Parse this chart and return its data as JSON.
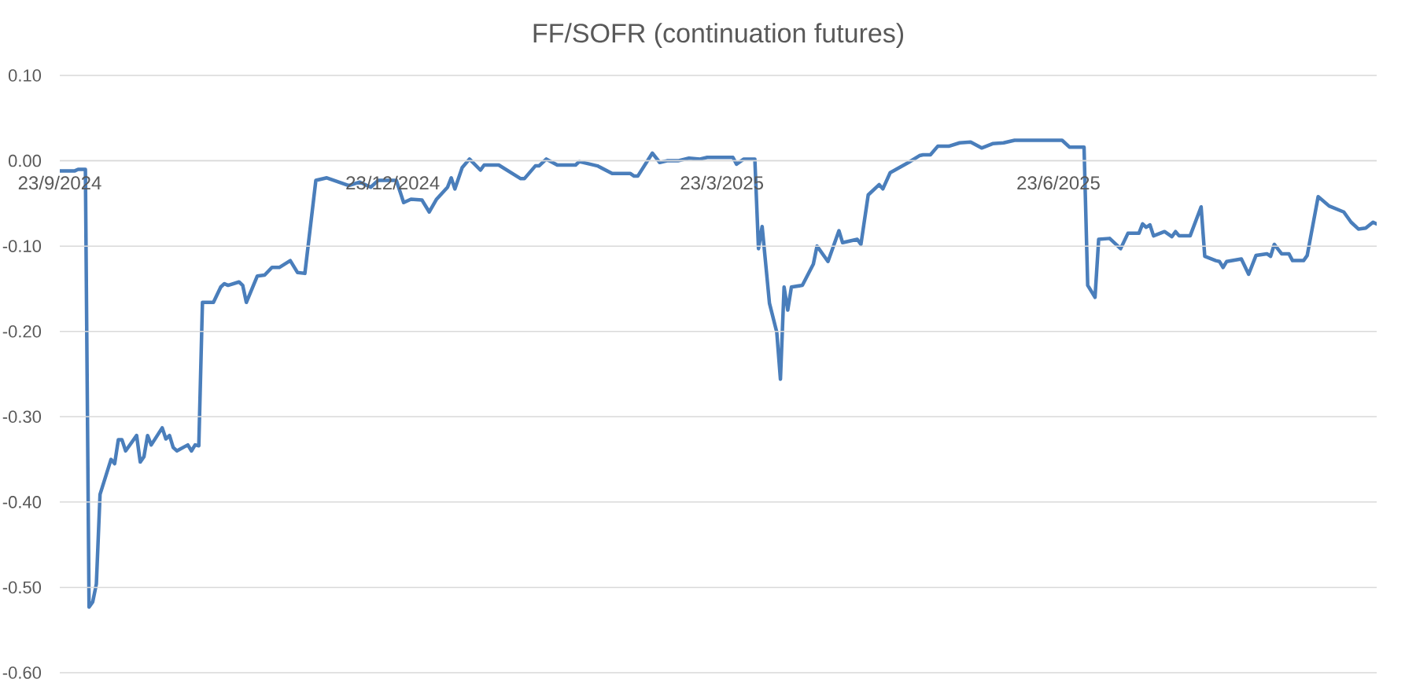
{
  "chart_data": {
    "type": "line",
    "title": "FF/SOFR (continuation futures)",
    "x": [
      "2024-09-23",
      "2024-09-27",
      "2024-09-28",
      "2024-09-30",
      "2024-10-01",
      "2024-10-02",
      "2024-10-03",
      "2024-10-04",
      "2024-10-07",
      "2024-10-08",
      "2024-10-09",
      "2024-10-10",
      "2024-10-11",
      "2024-10-14",
      "2024-10-15",
      "2024-10-16",
      "2024-10-17",
      "2024-10-18",
      "2024-10-21",
      "2024-10-22",
      "2024-10-23",
      "2024-10-24",
      "2024-10-25",
      "2024-10-28",
      "2024-10-29",
      "2024-10-30",
      "2024-10-31",
      "2024-11-01",
      "2024-11-04",
      "2024-11-06",
      "2024-11-07",
      "2024-11-08",
      "2024-11-11",
      "2024-11-12",
      "2024-11-13",
      "2024-11-16",
      "2024-11-18",
      "2024-11-20",
      "2024-11-22",
      "2024-11-25",
      "2024-11-27",
      "2024-11-29",
      "2024-12-02",
      "2024-12-05",
      "2024-12-11",
      "2024-12-14",
      "2024-12-17",
      "2024-12-19",
      "2024-12-24",
      "2024-12-26",
      "2024-12-28",
      "2024-12-31",
      "2025-01-02",
      "2025-01-04",
      "2025-01-07",
      "2025-01-08",
      "2025-01-09",
      "2025-01-11",
      "2025-01-13",
      "2025-01-16",
      "2025-01-17",
      "2025-01-21",
      "2025-01-27",
      "2025-01-28",
      "2025-01-31",
      "2025-02-01",
      "2025-02-03",
      "2025-02-06",
      "2025-02-11",
      "2025-02-12",
      "2025-02-17",
      "2025-02-21",
      "2025-02-26",
      "2025-02-27",
      "2025-02-28",
      "2025-03-04",
      "2025-03-06",
      "2025-03-08",
      "2025-03-11",
      "2025-03-14",
      "2025-03-17",
      "2025-03-19",
      "2025-03-26",
      "2025-03-27",
      "2025-03-29",
      "2025-04-01",
      "2025-04-02",
      "2025-04-03",
      "2025-04-05",
      "2025-04-07",
      "2025-04-08",
      "2025-04-09",
      "2025-04-10",
      "2025-04-11",
      "2025-04-14",
      "2025-04-17",
      "2025-04-18",
      "2025-04-21",
      "2025-04-24",
      "2025-04-25",
      "2025-04-29",
      "2025-04-30",
      "2025-05-02",
      "2025-05-05",
      "2025-05-06",
      "2025-05-08",
      "2025-05-13",
      "2025-05-16",
      "2025-05-17",
      "2025-05-19",
      "2025-05-21",
      "2025-05-24",
      "2025-05-27",
      "2025-05-30",
      "2025-06-02",
      "2025-06-05",
      "2025-06-08",
      "2025-06-11",
      "2025-06-24",
      "2025-06-26",
      "2025-06-30",
      "2025-07-01",
      "2025-07-03",
      "2025-07-04",
      "2025-07-07",
      "2025-07-10",
      "2025-07-12",
      "2025-07-15",
      "2025-07-16",
      "2025-07-17",
      "2025-07-18",
      "2025-07-19",
      "2025-07-22",
      "2025-07-24",
      "2025-07-25",
      "2025-07-26",
      "2025-07-29",
      "2025-08-01",
      "2025-08-02",
      "2025-08-05",
      "2025-08-06",
      "2025-08-07",
      "2025-08-08",
      "2025-08-12",
      "2025-08-14",
      "2025-08-16",
      "2025-08-19",
      "2025-08-20",
      "2025-08-21",
      "2025-08-23",
      "2025-08-25",
      "2025-08-26",
      "2025-08-29",
      "2025-08-30",
      "2025-09-02",
      "2025-09-05",
      "2025-09-09",
      "2025-09-11",
      "2025-09-13",
      "2025-09-15",
      "2025-09-17",
      "2025-09-18"
    ],
    "values": [
      -0.012,
      -0.012,
      -0.01,
      -0.01,
      -0.523,
      -0.517,
      -0.496,
      -0.391,
      -0.35,
      -0.355,
      -0.327,
      -0.327,
      -0.34,
      -0.322,
      -0.353,
      -0.347,
      -0.322,
      -0.333,
      -0.313,
      -0.326,
      -0.322,
      -0.336,
      -0.34,
      -0.333,
      -0.34,
      -0.333,
      -0.334,
      -0.166,
      -0.166,
      -0.148,
      -0.144,
      -0.146,
      -0.142,
      -0.146,
      -0.166,
      -0.135,
      -0.134,
      -0.125,
      -0.125,
      -0.117,
      -0.131,
      -0.132,
      -0.023,
      -0.02,
      -0.029,
      -0.025,
      -0.031,
      -0.023,
      -0.023,
      -0.049,
      -0.045,
      -0.046,
      -0.06,
      -0.045,
      -0.031,
      -0.02,
      -0.033,
      -0.008,
      0.002,
      -0.011,
      -0.005,
      -0.005,
      -0.021,
      -0.021,
      -0.006,
      -0.006,
      0.002,
      -0.005,
      -0.005,
      -0.001,
      -0.006,
      -0.015,
      -0.015,
      -0.018,
      -0.018,
      0.009,
      -0.002,
      0.0,
      0.0,
      0.003,
      0.002,
      0.004,
      0.004,
      -0.004,
      0.002,
      0.002,
      -0.103,
      -0.077,
      -0.167,
      -0.201,
      -0.256,
      -0.148,
      -0.175,
      -0.148,
      -0.146,
      -0.121,
      -0.1,
      -0.118,
      -0.082,
      -0.096,
      -0.092,
      -0.098,
      -0.04,
      -0.028,
      -0.033,
      -0.014,
      -0.002,
      0.006,
      0.007,
      0.007,
      0.017,
      0.017,
      0.021,
      0.022,
      0.015,
      0.02,
      0.021,
      0.024,
      0.024,
      0.016,
      0.016,
      -0.146,
      -0.16,
      -0.092,
      -0.091,
      -0.103,
      -0.085,
      -0.085,
      -0.074,
      -0.078,
      -0.075,
      -0.088,
      -0.083,
      -0.089,
      -0.083,
      -0.088,
      -0.088,
      -0.054,
      -0.112,
      -0.117,
      -0.118,
      -0.125,
      -0.118,
      -0.115,
      -0.133,
      -0.111,
      -0.109,
      -0.112,
      -0.098,
      -0.109,
      -0.109,
      -0.117,
      -0.117,
      -0.111,
      -0.042,
      -0.053,
      -0.06,
      -0.072,
      -0.08,
      -0.079,
      -0.072,
      -0.074
    ],
    "color": "#4a7ebb",
    "line_style": "solid",
    "xlim": [
      "2024-09-23",
      "2025-09-18"
    ],
    "xticks": [
      {
        "value": "2024-09-23",
        "label": "23/9/2024"
      },
      {
        "value": "2024-12-23",
        "label": "23/12/2024"
      },
      {
        "value": "2025-03-23",
        "label": "23/3/2025"
      },
      {
        "value": "2025-06-23",
        "label": "23/6/2025"
      }
    ],
    "ylim": [
      -0.6,
      0.1
    ],
    "yticks": [
      {
        "value": -0.6,
        "label": "-0.60"
      },
      {
        "value": -0.5,
        "label": "-0.50"
      },
      {
        "value": -0.4,
        "label": "-0.40"
      },
      {
        "value": -0.3,
        "label": "-0.30"
      },
      {
        "value": -0.2,
        "label": "-0.20"
      },
      {
        "value": -0.1,
        "label": "-0.10"
      },
      {
        "value": 0.0,
        "label": "0.00"
      },
      {
        "value": 0.1,
        "label": "0.10"
      }
    ],
    "grid": "y"
  }
}
